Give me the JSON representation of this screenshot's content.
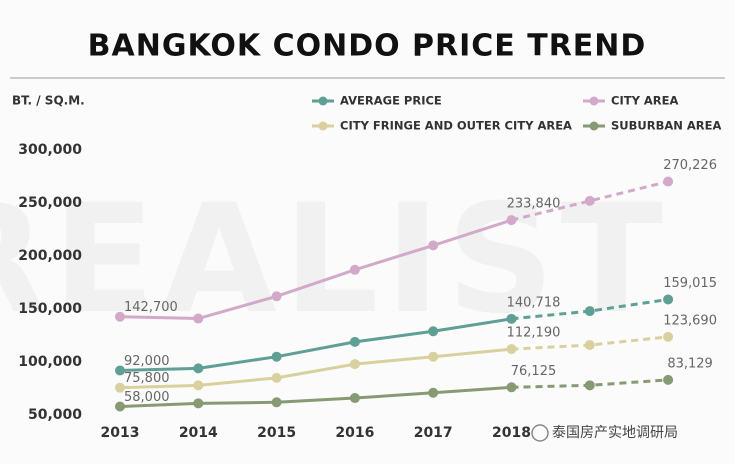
{
  "chart_data": {
    "type": "line",
    "title": "BANGKOK CONDO PRICE TREND",
    "y_label": "BT. / SQ.M.",
    "watermark": "REALIST",
    "source": "泰国房产实地调研局",
    "categories": [
      "2013",
      "2014",
      "2015",
      "2016",
      "2017",
      "2018",
      null,
      null
    ],
    "dashed_from_index": 5,
    "series": [
      {
        "name": "AVERAGE PRICE",
        "color": "#5f9f94",
        "values": [
          92000,
          94000,
          105000,
          119000,
          129000,
          140718,
          148000,
          159015
        ],
        "value_labels": [
          "92,000",
          null,
          null,
          null,
          null,
          "140,718",
          null,
          "159,015"
        ]
      },
      {
        "name": "CITY AREA",
        "color": "#d3a9c9",
        "values": [
          142700,
          141000,
          162000,
          187000,
          210000,
          233840,
          252000,
          270226
        ],
        "value_labels": [
          "142,700",
          null,
          null,
          null,
          null,
          "233,840",
          null,
          "270,226"
        ]
      },
      {
        "name": "CITY FRINGE AND OUTER CITY AREA",
        "color": "#d9d09f",
        "values": [
          75800,
          78000,
          85000,
          98000,
          105000,
          112190,
          116000,
          123690
        ],
        "value_labels": [
          "75,800",
          null,
          null,
          null,
          null,
          "112,190",
          null,
          "123,690"
        ]
      },
      {
        "name": "SUBURBAN AREA",
        "color": "#879a74",
        "values": [
          58000,
          61000,
          62000,
          66000,
          71000,
          76125,
          78000,
          83129
        ],
        "value_labels": [
          "58,000",
          null,
          null,
          null,
          null,
          "76,125",
          null,
          "83,129"
        ]
      }
    ],
    "ylim": [
      50000,
      300000
    ],
    "yticks": [
      {
        "value": 50000,
        "label": "50,000"
      },
      {
        "value": 100000,
        "label": "100,000"
      },
      {
        "value": 150000,
        "label": "150,000"
      },
      {
        "value": 200000,
        "label": "200,000"
      },
      {
        "value": 250000,
        "label": "250,000"
      },
      {
        "value": 300000,
        "label": "300,000"
      }
    ],
    "grid": false
  }
}
